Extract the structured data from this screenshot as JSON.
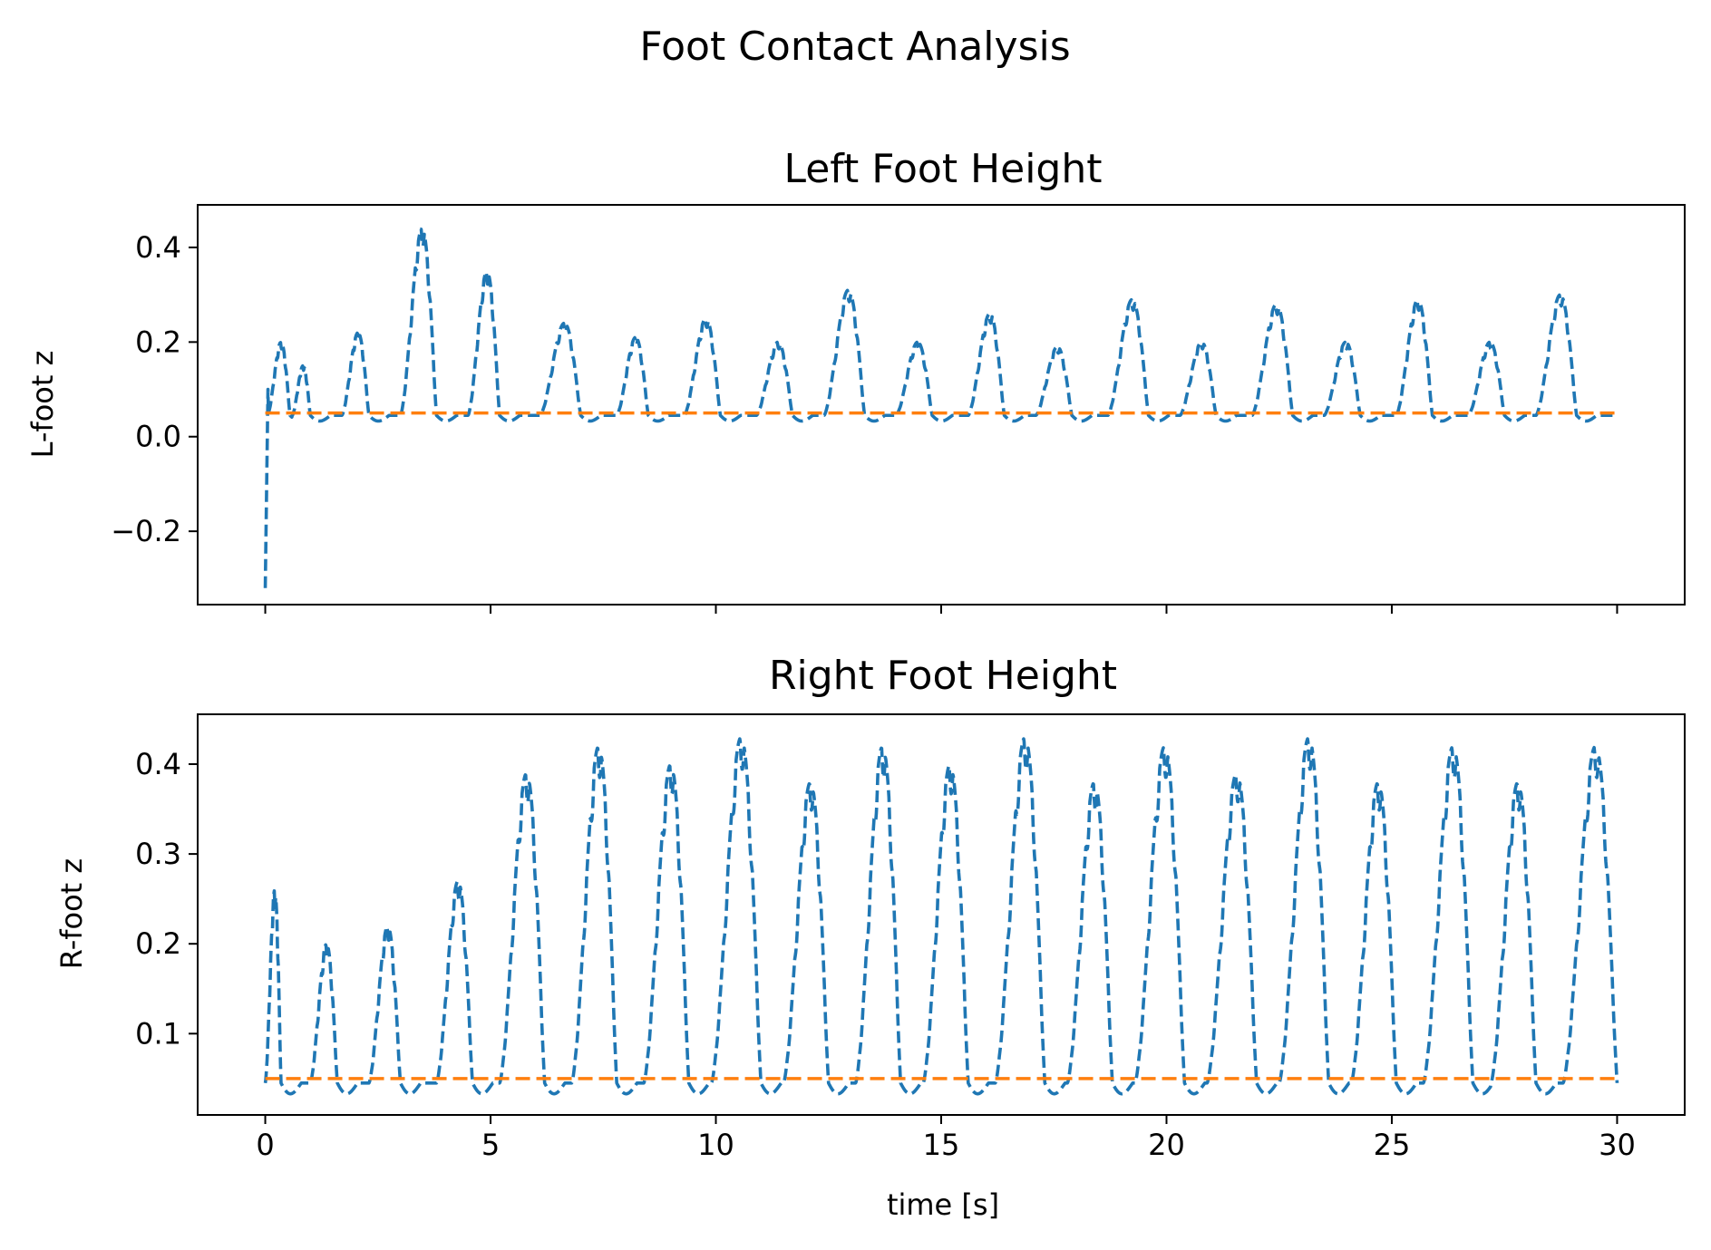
{
  "figure": {
    "suptitle": "Foot Contact Analysis"
  },
  "colors": {
    "foot": "#1f77b4",
    "threshold": "#ff7f0e"
  },
  "chart_data": [
    {
      "type": "line",
      "title": "Left Foot Height",
      "xlabel": "",
      "ylabel": "L-foot z",
      "xlim": [
        -1.5,
        31.5
      ],
      "ylim": [
        -0.355,
        0.49
      ],
      "xticks": [
        0,
        5,
        10,
        15,
        20,
        25,
        30
      ],
      "xticklabels": [],
      "yticks": [
        -0.2,
        0.0,
        0.2,
        0.4
      ],
      "yticklabels": [
        "−0.2",
        "0.0",
        "0.2",
        "0.4"
      ],
      "grid": false,
      "legend": "none",
      "threshold": 0.05,
      "baseline": 0.045,
      "initial": {
        "t0": 0.0,
        "y0": -0.32,
        "t1": 0.07,
        "y1": 0.17
      },
      "steps": [
        {
          "start": 0.05,
          "end": 0.55,
          "peak": 0.2
        },
        {
          "start": 0.6,
          "end": 1.0,
          "peak": 0.15
        },
        {
          "start": 1.7,
          "end": 2.3,
          "peak": 0.22
        },
        {
          "start": 3.0,
          "end": 3.8,
          "peak": 0.44
        },
        {
          "start": 4.5,
          "end": 5.2,
          "peak": 0.35
        },
        {
          "start": 6.1,
          "end": 7.0,
          "peak": 0.24
        },
        {
          "start": 7.8,
          "end": 8.5,
          "peak": 0.21
        },
        {
          "start": 9.3,
          "end": 10.1,
          "peak": 0.25
        },
        {
          "start": 10.9,
          "end": 11.7,
          "peak": 0.2
        },
        {
          "start": 12.4,
          "end": 13.3,
          "peak": 0.31
        },
        {
          "start": 14.0,
          "end": 14.8,
          "peak": 0.2
        },
        {
          "start": 15.6,
          "end": 16.4,
          "peak": 0.26
        },
        {
          "start": 17.1,
          "end": 17.9,
          "peak": 0.19
        },
        {
          "start": 18.7,
          "end": 19.6,
          "peak": 0.29
        },
        {
          "start": 20.3,
          "end": 21.1,
          "peak": 0.2
        },
        {
          "start": 21.9,
          "end": 22.8,
          "peak": 0.28
        },
        {
          "start": 23.5,
          "end": 24.3,
          "peak": 0.2
        },
        {
          "start": 25.1,
          "end": 25.9,
          "peak": 0.29
        },
        {
          "start": 26.7,
          "end": 27.5,
          "peak": 0.2
        },
        {
          "start": 28.2,
          "end": 29.1,
          "peak": 0.3
        }
      ],
      "series": [
        {
          "values_ref": "steps",
          "color": "#1f77b4",
          "dash": "dashed"
        },
        {
          "values_ref": "threshold",
          "color": "#ff7f0e",
          "dash": "dashed"
        }
      ]
    },
    {
      "type": "line",
      "title": "Right Foot Height",
      "xlabel": "time [s]",
      "ylabel": "R-foot z",
      "xlim": [
        -1.5,
        31.5
      ],
      "ylim": [
        0.0095,
        0.4555
      ],
      "xticks": [
        0,
        5,
        10,
        15,
        20,
        25,
        30
      ],
      "xticklabels": [
        "0",
        "5",
        "10",
        "15",
        "20",
        "25",
        "30"
      ],
      "yticks": [
        0.1,
        0.2,
        0.3,
        0.4
      ],
      "yticklabels": [
        "0.1",
        "0.2",
        "0.3",
        "0.4"
      ],
      "grid": false,
      "legend": "none",
      "threshold": 0.05,
      "baseline": 0.045,
      "initial": {
        "t0": 0.0,
        "y0": 0.07,
        "t1": 0.0,
        "y1": 0.07
      },
      "steps": [
        {
          "start": 0.0,
          "end": 0.35,
          "peak": 0.26
        },
        {
          "start": 1.0,
          "end": 1.6,
          "peak": 0.2
        },
        {
          "start": 2.3,
          "end": 3.0,
          "peak": 0.22
        },
        {
          "start": 3.8,
          "end": 4.6,
          "peak": 0.27
        },
        {
          "start": 5.2,
          "end": 6.2,
          "peak": 0.39
        },
        {
          "start": 6.8,
          "end": 7.8,
          "peak": 0.42
        },
        {
          "start": 8.4,
          "end": 9.4,
          "peak": 0.4
        },
        {
          "start": 9.9,
          "end": 11.0,
          "peak": 0.43
        },
        {
          "start": 11.5,
          "end": 12.5,
          "peak": 0.38
        },
        {
          "start": 13.1,
          "end": 14.1,
          "peak": 0.42
        },
        {
          "start": 14.6,
          "end": 15.6,
          "peak": 0.4
        },
        {
          "start": 16.2,
          "end": 17.3,
          "peak": 0.43
        },
        {
          "start": 17.8,
          "end": 18.8,
          "peak": 0.38
        },
        {
          "start": 19.3,
          "end": 20.4,
          "peak": 0.42
        },
        {
          "start": 20.9,
          "end": 22.0,
          "peak": 0.39
        },
        {
          "start": 22.5,
          "end": 23.6,
          "peak": 0.43
        },
        {
          "start": 24.1,
          "end": 25.1,
          "peak": 0.38
        },
        {
          "start": 25.7,
          "end": 26.8,
          "peak": 0.42
        },
        {
          "start": 27.2,
          "end": 28.2,
          "peak": 0.38
        },
        {
          "start": 28.8,
          "end": 30.0,
          "peak": 0.42
        }
      ],
      "series": [
        {
          "values_ref": "steps",
          "color": "#1f77b4",
          "dash": "dashed"
        },
        {
          "values_ref": "threshold",
          "color": "#ff7f0e",
          "dash": "dashed"
        }
      ]
    }
  ]
}
